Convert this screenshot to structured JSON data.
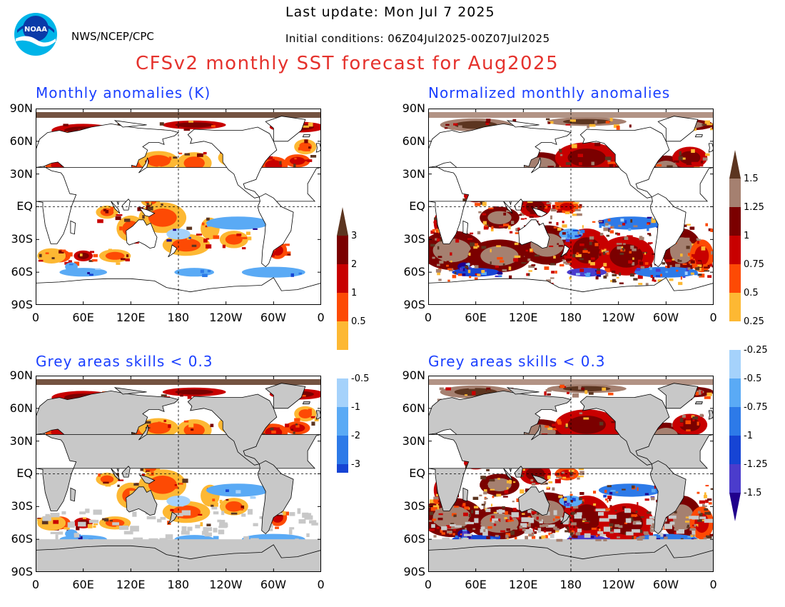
{
  "header": {
    "last_update": "Last update: Mon Jul 7 2025",
    "initial_conditions": "Initial conditions: 06Z04Jul2025-00Z07Jul2025",
    "organization": "NWS/NCEP/CPC",
    "title": "CFSv2 monthly SST forecast for Aug2025",
    "logo_text": "NOAA"
  },
  "panels": [
    {
      "title": "Monthly anomalies (K)"
    },
    {
      "title": "Normalized monthly anomalies"
    },
    {
      "title": "Grey areas skills < 0.3"
    },
    {
      "title": "Grey areas skills < 0.3"
    }
  ],
  "axes": {
    "y_ticks": [
      "90N",
      "60N",
      "30N",
      "EQ",
      "30S",
      "60S",
      "90S"
    ],
    "x_ticks": [
      "0",
      "60E",
      "120E",
      "180",
      "120W",
      "60W",
      "0"
    ]
  },
  "colorbar_k": {
    "labels_top": [
      "3",
      "2",
      "1",
      "0.5"
    ],
    "labels_bottom": [
      "-0.5",
      "-1",
      "-2",
      "-3"
    ],
    "colors_positive": [
      "#fdb833",
      "#fd4a04",
      "#c80000",
      "#7b0000",
      "#5c3520"
    ],
    "colors_negative": [
      "#a5d2fb",
      "#5aaaf5",
      "#2d7ae8",
      "#1644d4",
      "#20008c"
    ]
  },
  "colorbar_norm": {
    "labels_top": [
      "1.5",
      "1.25",
      "1",
      "0.75",
      "0.5",
      "0.25"
    ],
    "labels_bottom": [
      "-0.25",
      "-0.5",
      "-0.75",
      "-1",
      "-1.25",
      "-1.5"
    ],
    "colors_positive": [
      "#fdb833",
      "#fd4a04",
      "#c80000",
      "#7b0000",
      "#a58070",
      "#5c3520"
    ],
    "colors_negative": [
      "#a5d2fb",
      "#5aaaf5",
      "#2d7ae8",
      "#1644d4",
      "#4b3ccc",
      "#20008c"
    ]
  },
  "map_colors": {
    "land": "#ffffff",
    "grey_skill": "#c8c8c8",
    "coast": "#000000"
  }
}
